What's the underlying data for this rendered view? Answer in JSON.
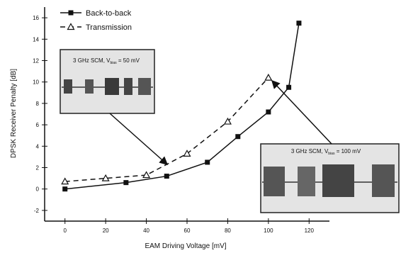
{
  "chart_data": {
    "type": "line",
    "xlabel": "EAM Driving Voltage [mV]",
    "ylabel": "DPSK Receiver Penalty [dB]",
    "xlim": [
      -10,
      130
    ],
    "xticks": [
      0,
      20,
      40,
      60,
      80,
      100,
      120
    ],
    "ylim": [
      -3,
      17
    ],
    "yticks": [
      -2,
      0,
      2,
      4,
      6,
      8,
      10,
      12,
      14,
      16
    ],
    "legend": "top-left",
    "series": [
      {
        "name": "Back-to-back",
        "color": "#111111",
        "marker": "square",
        "dashed": false,
        "x": [
          0,
          30,
          50,
          70,
          85,
          100,
          110,
          115
        ],
        "values": [
          0,
          0.6,
          1.2,
          2.5,
          4.9,
          7.2,
          9.5,
          15.5
        ]
      },
      {
        "name": "Transmission",
        "color": "#111111",
        "marker": "triangle",
        "dashed": true,
        "x": [
          0,
          20,
          40,
          60,
          80,
          100
        ],
        "values": [
          0.7,
          1.0,
          1.3,
          3.3,
          6.3,
          10.4
        ]
      }
    ],
    "annotations": [
      {
        "prefix": "3 GHz SCM, V",
        "sub": "bias",
        "suffix": " = 50 mV"
      },
      {
        "prefix": "3 GHz SCM, V",
        "sub": "bias",
        "suffix": " = 100 mV"
      }
    ]
  }
}
